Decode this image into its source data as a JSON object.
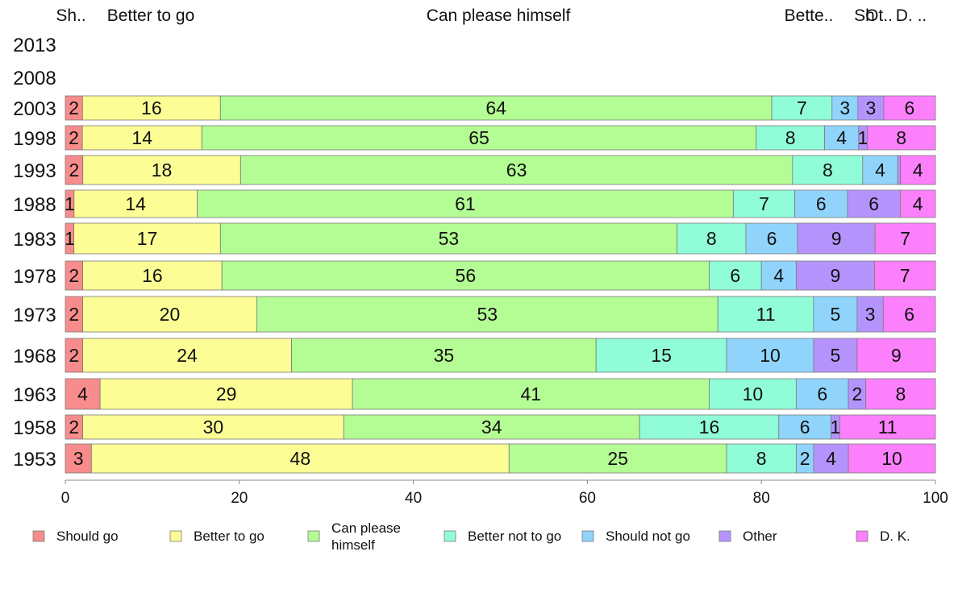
{
  "chart_data": {
    "type": "bar",
    "orientation": "horizontal",
    "stacked": true,
    "categories": [
      "2013",
      "2008",
      "2003",
      "1998",
      "1993",
      "1988",
      "1983",
      "1978",
      "1973",
      "1968",
      "1963",
      "1958",
      "1953"
    ],
    "series": [
      {
        "name": "Should go",
        "color": "#f88c8c",
        "values": [
          null,
          null,
          2,
          2,
          2,
          1,
          1,
          2,
          2,
          2,
          4,
          2,
          3
        ]
      },
      {
        "name": "Better to go",
        "color": "#fdfd96",
        "values": [
          null,
          null,
          16,
          14,
          18,
          14,
          17,
          16,
          20,
          24,
          29,
          30,
          48
        ]
      },
      {
        "name": "Can please himself",
        "color": "#b4fc94",
        "values": [
          null,
          null,
          64,
          65,
          63,
          61,
          53,
          56,
          53,
          35,
          41,
          34,
          25
        ]
      },
      {
        "name": "Better not to go",
        "color": "#90fcd8",
        "values": [
          null,
          null,
          7,
          8,
          8,
          7,
          8,
          6,
          11,
          15,
          10,
          16,
          8
        ]
      },
      {
        "name": "Should not go",
        "color": "#90d4fc",
        "values": [
          null,
          null,
          3,
          4,
          4,
          6,
          6,
          4,
          5,
          10,
          6,
          6,
          2
        ]
      },
      {
        "name": "Other",
        "color": "#b494fc",
        "values": [
          null,
          null,
          3,
          1,
          0.3,
          6,
          9,
          9,
          3,
          5,
          2,
          1,
          4
        ]
      },
      {
        "name": "D. K.",
        "color": "#fc80fc",
        "values": [
          null,
          null,
          6,
          8,
          4,
          4,
          7,
          7,
          6,
          9,
          8,
          11,
          10
        ]
      }
    ],
    "segment_labels": [
      [],
      [],
      [
        "2",
        "16",
        "64",
        "7",
        "3",
        "3",
        "6"
      ],
      [
        "2",
        "14",
        "65",
        "8",
        "4",
        "1",
        "8"
      ],
      [
        "2",
        "18",
        "63",
        "8",
        "4",
        "",
        "4"
      ],
      [
        "1",
        "14",
        "61",
        "7",
        "6",
        "6",
        "4"
      ],
      [
        "1",
        "17",
        "53",
        "8",
        "6",
        "9",
        "7"
      ],
      [
        "2",
        "16",
        "56",
        "6",
        "4",
        "9",
        "7"
      ],
      [
        "2",
        "20",
        "53",
        "11",
        "5",
        "3",
        "6"
      ],
      [
        "2",
        "24",
        "35",
        "15",
        "10",
        "5",
        "9"
      ],
      [
        "4",
        "29",
        "41",
        "10",
        "6",
        "2",
        "8"
      ],
      [
        "2",
        "30",
        "34",
        "16",
        "6",
        "1",
        "11"
      ],
      [
        "3",
        "48",
        "25",
        "8",
        "2",
        "4",
        "10"
      ]
    ],
    "column_labels": [
      "Sh..",
      "Better to go",
      "Can please himself",
      "Bette..",
      "Sh",
      "Ot..",
      "D. .."
    ],
    "legend_labels": [
      "Should go",
      "Better to go",
      "Can please\nhimself",
      "Better not to go",
      "Should not go",
      "Other",
      "D. K."
    ],
    "xlim": [
      0,
      100
    ],
    "x_ticks": [
      0,
      20,
      40,
      60,
      80,
      100
    ],
    "legend_position": "bottom",
    "grid": false
  }
}
